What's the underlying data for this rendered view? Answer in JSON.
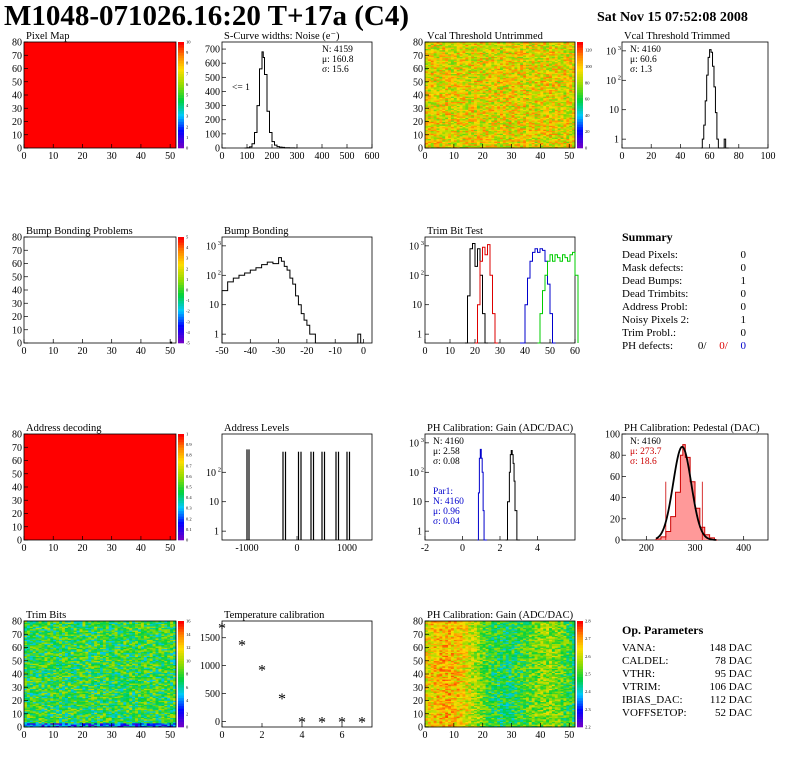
{
  "header": {
    "title": "M1048-071026.16:20 T+17a (C4)",
    "date": "Sat Nov 15 07:52:08 2008"
  },
  "chart_data": [
    {
      "id": "pixel_map",
      "type": "heatmap",
      "title": "Pixel Map",
      "xlim": [
        0,
        52
      ],
      "ylim": [
        0,
        80
      ],
      "xticks": [
        0,
        10,
        20,
        30,
        40,
        50
      ],
      "yticks": [
        0,
        10,
        20,
        30,
        40,
        50,
        60,
        70,
        80
      ],
      "fill": "uniform_red",
      "zlim": [
        0,
        10
      ],
      "zticks": [
        0,
        1,
        2,
        3,
        4,
        5,
        6,
        7,
        8,
        9,
        10
      ],
      "palette": "rainbow"
    },
    {
      "id": "scurve_noise",
      "type": "line",
      "title": "S-Curve widths: Noise (e⁻)",
      "xlim": [
        0,
        600
      ],
      "ylim": [
        0,
        750
      ],
      "xticks": [
        0,
        100,
        200,
        300,
        400,
        500,
        600
      ],
      "yticks": [
        0,
        100,
        200,
        300,
        400,
        500,
        600,
        700
      ],
      "stats": [
        "N: 4159",
        "μ: 160.8",
        "σ: 15.6"
      ],
      "annotation": "<= 1",
      "x": [
        90,
        100,
        110,
        120,
        130,
        140,
        150,
        160,
        165,
        170,
        180,
        190,
        200,
        210,
        220,
        230,
        240,
        250,
        260,
        270,
        280,
        290
      ],
      "y": [
        0,
        2,
        8,
        30,
        110,
        300,
        560,
        680,
        640,
        520,
        260,
        110,
        45,
        20,
        10,
        6,
        4,
        2,
        2,
        1,
        1,
        0
      ]
    },
    {
      "id": "vcal_untrimmed",
      "type": "heatmap",
      "title": "Vcal Threshold Untrimmed",
      "xlim": [
        0,
        52
      ],
      "ylim": [
        0,
        80
      ],
      "xticks": [
        0,
        10,
        20,
        30,
        40,
        50
      ],
      "yticks": [
        0,
        10,
        20,
        30,
        40,
        50,
        60,
        70,
        80
      ],
      "fill": "noisy_warm",
      "zlim": [
        0,
        130
      ],
      "zticks": [
        0,
        20,
        40,
        60,
        80,
        100,
        120
      ],
      "palette": "rainbow"
    },
    {
      "id": "vcal_trimmed",
      "type": "line",
      "title": "Vcal Threshold Trimmed",
      "log": true,
      "xlim": [
        0,
        100
      ],
      "ylim": [
        0.5,
        2000
      ],
      "xticks": [
        0,
        20,
        40,
        60,
        80,
        100
      ],
      "yticks": [
        1,
        10,
        100,
        1000
      ],
      "stats": [
        "N: 4160",
        "μ: 60.6",
        "σ:  1.3"
      ],
      "x": [
        54,
        55,
        56,
        57,
        58,
        59,
        60,
        61,
        62,
        63,
        64,
        65,
        66,
        70,
        71
      ],
      "y": [
        0.5,
        1,
        3,
        20,
        150,
        600,
        1100,
        900,
        300,
        60,
        8,
        1,
        0.5,
        1,
        0.5
      ]
    },
    {
      "id": "bump_problems",
      "type": "heatmap",
      "title": "Bump Bonding Problems",
      "xlim": [
        0,
        52
      ],
      "ylim": [
        0,
        80
      ],
      "xticks": [
        0,
        10,
        20,
        30,
        40,
        50
      ],
      "yticks": [
        0,
        10,
        20,
        30,
        40,
        50,
        60,
        70,
        80
      ],
      "fill": "empty_with_dot",
      "zlim": [
        -5,
        5
      ],
      "zticks": [
        -5,
        -4,
        -3,
        -2,
        -1,
        0,
        1,
        2,
        3,
        4,
        5
      ],
      "palette": "rainbow"
    },
    {
      "id": "bump_bonding",
      "type": "line",
      "title": "Bump Bonding",
      "log": true,
      "xlim": [
        -50,
        3
      ],
      "ylim": [
        0.5,
        2000
      ],
      "xticks": [
        -50,
        -40,
        -30,
        -20,
        -10,
        0
      ],
      "yticks": [
        1,
        10,
        100,
        1000
      ],
      "x": [
        -50,
        -48,
        -46,
        -44,
        -42,
        -40,
        -38,
        -36,
        -34,
        -32,
        -30,
        -29,
        -28,
        -27,
        -26,
        -25,
        -24,
        -23,
        -22,
        -21,
        -20,
        -19,
        -18,
        -17,
        -2,
        -1
      ],
      "y": [
        30,
        60,
        80,
        100,
        120,
        150,
        180,
        230,
        280,
        250,
        400,
        300,
        200,
        150,
        80,
        50,
        20,
        10,
        5,
        3,
        2,
        1,
        1,
        0.5,
        1,
        0.5
      ]
    },
    {
      "id": "trim_bit_test",
      "type": "line",
      "title": "Trim Bit Test",
      "log": true,
      "xlim": [
        0,
        60
      ],
      "ylim": [
        0.5,
        2000
      ],
      "xticks": [
        0,
        10,
        20,
        30,
        40,
        50,
        60
      ],
      "yticks": [
        1,
        10,
        100,
        1000
      ],
      "series": [
        {
          "color": "#000000",
          "x": [
            16,
            17,
            18,
            19,
            20,
            21,
            22,
            23,
            24
          ],
          "y": [
            0.5,
            20,
            800,
            1200,
            200,
            800,
            100,
            5,
            0.5
          ]
        },
        {
          "color": "#dd0000",
          "x": [
            20,
            21,
            22,
            23,
            24,
            25,
            26,
            27,
            28
          ],
          "y": [
            0.5,
            10,
            300,
            900,
            500,
            1100,
            100,
            5,
            0.5
          ]
        },
        {
          "color": "#0000cc",
          "x": [
            38,
            40,
            41,
            42,
            43,
            44,
            45,
            46,
            47,
            48,
            49,
            50,
            51
          ],
          "y": [
            0.5,
            10,
            80,
            300,
            600,
            800,
            600,
            800,
            700,
            300,
            50,
            5,
            0.5
          ]
        },
        {
          "color": "#00cc00",
          "x": [
            45,
            46,
            47,
            48,
            49,
            50,
            51,
            52,
            53,
            54,
            55,
            56,
            57,
            58,
            59,
            60
          ],
          "y": [
            0.5,
            5,
            30,
            100,
            300,
            500,
            300,
            500,
            400,
            300,
            500,
            400,
            300,
            500,
            600,
            100
          ]
        }
      ]
    },
    {
      "id": "address_decoding",
      "type": "heatmap",
      "title": "Address decoding",
      "xlim": [
        0,
        52
      ],
      "ylim": [
        0,
        80
      ],
      "xticks": [
        0,
        10,
        20,
        30,
        40,
        50
      ],
      "yticks": [
        0,
        10,
        20,
        30,
        40,
        50,
        60,
        70,
        80
      ],
      "fill": "uniform_red",
      "zlim": [
        0,
        1
      ],
      "zticks": [
        0,
        0.1,
        0.2,
        0.3,
        0.4,
        0.5,
        0.6,
        0.7,
        0.8,
        0.9,
        1
      ],
      "palette": "rainbow"
    },
    {
      "id": "address_levels",
      "type": "line",
      "title": "Address Levels",
      "log": true,
      "xlim": [
        -1500,
        1500
      ],
      "ylim": [
        0.5,
        2000
      ],
      "xticks": [
        -1000,
        0,
        1000
      ],
      "yticks": [
        1,
        10,
        100
      ],
      "spikes": [
        [
          -1000,
          600
        ],
        [
          -960,
          600
        ],
        [
          -280,
          500
        ],
        [
          -230,
          500
        ],
        [
          30,
          500
        ],
        [
          80,
          500
        ],
        [
          280,
          500
        ],
        [
          330,
          500
        ],
        [
          500,
          500
        ],
        [
          550,
          500
        ],
        [
          780,
          500
        ],
        [
          830,
          500
        ],
        [
          1000,
          500
        ],
        [
          1050,
          500
        ]
      ]
    },
    {
      "id": "ph_gain",
      "type": "line",
      "title": "PH Calibration: Gain (ADC/DAC)",
      "log": true,
      "xlim": [
        -2,
        6
      ],
      "ylim": [
        0.5,
        2000
      ],
      "xticks": [
        -2,
        0,
        2,
        4
      ],
      "yticks": [
        1,
        10,
        100,
        1000
      ],
      "stats": [
        "N: 4160",
        "μ: 2.58",
        "σ: 0.08"
      ],
      "stats2": [
        "Par1:",
        "N: 4160",
        "μ: 0.96",
        "σ: 0.04"
      ],
      "series": [
        {
          "color": "#0000cc",
          "x": [
            0.8,
            0.85,
            0.9,
            0.95,
            1.0,
            1.05,
            1.1,
            1.15
          ],
          "y": [
            0.5,
            20,
            300,
            600,
            300,
            100,
            5,
            0.5
          ]
        },
        {
          "color": "#000000",
          "x": [
            2.3,
            2.4,
            2.5,
            2.55,
            2.6,
            2.65,
            2.7,
            2.75,
            2.8,
            2.9
          ],
          "y": [
            0.5,
            10,
            100,
            400,
            550,
            400,
            200,
            50,
            5,
            0.5
          ]
        }
      ]
    },
    {
      "id": "ph_pedestal",
      "type": "line",
      "title": "PH Calibration: Pedestal (DAC)",
      "xlim": [
        150,
        450
      ],
      "ylim": [
        0,
        100
      ],
      "xticks": [
        200,
        300,
        400
      ],
      "yticks": [
        0,
        20,
        40,
        60,
        80,
        100
      ],
      "stats": [
        "N: 4160",
        "μ: 273.7",
        "σ: 18.6"
      ],
      "x": [
        220,
        230,
        240,
        250,
        260,
        270,
        275,
        280,
        290,
        300,
        310,
        320,
        330,
        340
      ],
      "y": [
        1,
        3,
        8,
        22,
        45,
        80,
        90,
        78,
        55,
        30,
        12,
        5,
        2,
        0
      ]
    },
    {
      "id": "trim_bits",
      "type": "heatmap",
      "title": "Trim Bits",
      "xlim": [
        0,
        52
      ],
      "ylim": [
        0,
        80
      ],
      "xticks": [
        0,
        10,
        20,
        30,
        40,
        50
      ],
      "yticks": [
        0,
        10,
        20,
        30,
        40,
        50,
        60,
        70,
        80
      ],
      "fill": "noisy_green",
      "zlim": [
        0,
        16
      ],
      "zticks": [
        0,
        2,
        4,
        6,
        8,
        10,
        12,
        14,
        16
      ],
      "palette": "rainbow"
    },
    {
      "id": "temperature",
      "type": "scatter",
      "title": "Temperature calibration",
      "xlim": [
        0,
        7.5
      ],
      "ylim": [
        -100,
        1800
      ],
      "xticks": [
        0,
        2,
        4,
        6
      ],
      "yticks": [
        0,
        500,
        1000,
        1500
      ],
      "x": [
        0,
        1,
        2,
        3,
        4,
        5,
        6,
        7
      ],
      "y": [
        1680,
        1380,
        930,
        420,
        0,
        0,
        0,
        0
      ]
    },
    {
      "id": "ph_gain_map",
      "type": "heatmap",
      "title": "PH Calibration: Gain (ADC/DAC)",
      "xlim": [
        0,
        52
      ],
      "ylim": [
        0,
        80
      ],
      "xticks": [
        0,
        10,
        20,
        30,
        40,
        50
      ],
      "yticks": [
        0,
        10,
        20,
        30,
        40,
        50,
        60,
        70,
        80
      ],
      "fill": "noisy_gain",
      "zlim": [
        2.2,
        2.8
      ],
      "zticks": [
        2.2,
        2.3,
        2.4,
        2.5,
        2.6,
        2.7,
        2.8
      ],
      "palette": "rainbow"
    }
  ],
  "summary": {
    "title": "Summary",
    "rows": [
      {
        "label": "Dead Pixels:",
        "value": "0"
      },
      {
        "label": "Mask defects:",
        "value": "0"
      },
      {
        "label": "Dead Bumps:",
        "value": "1"
      },
      {
        "label": "Dead Trimbits:",
        "value": "0"
      },
      {
        "label": "Address Probl:",
        "value": "0"
      },
      {
        "label": "Noisy Pixels 2:",
        "value": "1"
      },
      {
        "label": "Trim Probl.:",
        "value": "0"
      }
    ],
    "ph_defects": {
      "label": "PH defects:",
      "v1": "0/",
      "v2": "0/",
      "v3": "0"
    }
  },
  "op_params": {
    "title": "Op. Parameters",
    "rows": [
      {
        "label": "VANA:",
        "value": "148 DAC"
      },
      {
        "label": "CALDEL:",
        "value": "78 DAC"
      },
      {
        "label": "VTHR:",
        "value": "95 DAC"
      },
      {
        "label": "VTRIM:",
        "value": "106 DAC"
      },
      {
        "label": "IBIAS_DAC:",
        "value": "112 DAC"
      },
      {
        "label": "VOFFSETOP:",
        "value": "52 DAC"
      }
    ]
  },
  "colors": {
    "red": "#ff0000",
    "blue": "#0000cc",
    "green": "#00cc00",
    "black": "#000000",
    "hist_fill": "#ff9999"
  }
}
